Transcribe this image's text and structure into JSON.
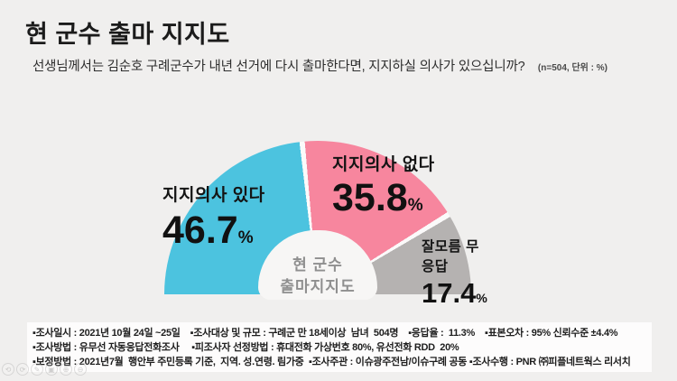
{
  "header": {
    "title": "현 군수 출마 지지도",
    "question": "선생님께서는 김순호 구례군수가 내년 선거에 다시 출마한다면, 지지하실 의사가 있으십니까?",
    "sample_note": "(n=504, 단위 : %)"
  },
  "chart_data": {
    "type": "pie",
    "variant": "semi-donut",
    "title": "현 군수 출마지지도",
    "categories": [
      "지지의사 있다",
      "지지의사 없다",
      "잘모름 무응답"
    ],
    "values": [
      46.7,
      35.8,
      17.4
    ],
    "colors": [
      "#4cc3df",
      "#f7869e",
      "#b5b2b1"
    ],
    "unit_symbol": "%",
    "n": 504,
    "start_angle_deg": 180,
    "end_angle_deg": 0,
    "separator_color": "#fbfafa",
    "center_label": {
      "line1": "현 군수",
      "line2": "출마지지도"
    },
    "legend_position": "on-slice-labels",
    "grid": false
  },
  "footer": {
    "lines": [
      "▪조사일시 : 2021년 10월 24일 ~25일    ▪조사대상 및 규모 : 구례군 만 18세이상  남녀  504명    ▪응답율 :  11.3%    ▪표본오차 : 95% 신뢰수준 ±4.4%",
      "▪조사방법 : 유무선 자동응답전화조사     ▪피조사자 선정방법 : 휴대전화 가상번호 80%, 유선전화 RDD  20%",
      "▪보정방법 : 2021년7월  행안부 주민등록 기준,  지역. 성.연령. 림가중  ▪조사주관 : 이슈광주전남/이슈구례 공동 ▪조사수행 : PNR ㈜피플네트웍스 리서치"
    ]
  },
  "watermark_icons": [
    "rotate-left",
    "rotate-right",
    "edit",
    "crop",
    "zoom-in",
    "zoom-out"
  ],
  "watermark_glyphs": {
    "rotate-left": "⟲",
    "rotate-right": "⟳",
    "edit": "✎",
    "crop": "▣",
    "zoom-in": "⊕",
    "zoom-out": "⊖"
  }
}
